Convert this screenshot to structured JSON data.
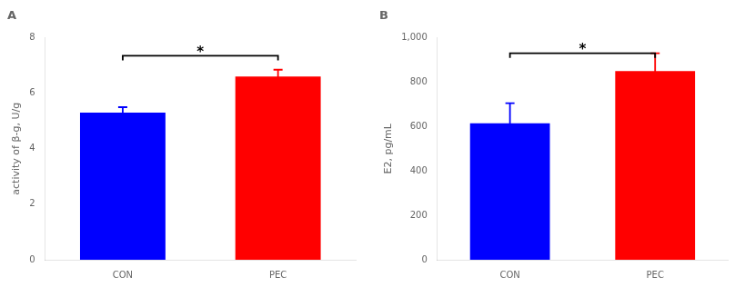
{
  "chart_data": [
    {
      "type": "bar",
      "title": "A",
      "categories": [
        "CON",
        "PEC"
      ],
      "values": [
        5.3,
        6.6
      ],
      "errors": [
        0.2,
        0.25
      ],
      "colors": [
        "#0000FF",
        "#FF0000"
      ],
      "ylabel": "activity of β-g, U/g",
      "ylim": [
        0,
        8
      ],
      "yticks": [
        0,
        2,
        4,
        6,
        8
      ],
      "grid": false,
      "annotations": [
        {
          "text": "*",
          "between": [
            "CON",
            "PEC"
          ],
          "y": 7.35
        }
      ]
    },
    {
      "type": "bar",
      "title": "B",
      "categories": [
        "CON",
        "PEC"
      ],
      "values": [
        615,
        850
      ],
      "errors": [
        90,
        80
      ],
      "colors": [
        "#0000FF",
        "#FF0000"
      ],
      "ylabel": "E2, pg/mL",
      "ylim": [
        0,
        1000
      ],
      "yticks": [
        0,
        200,
        400,
        600,
        800,
        1000
      ],
      "grid": false,
      "annotations": [
        {
          "text": "*",
          "between": [
            "CON",
            "PEC"
          ],
          "y": 930
        }
      ]
    }
  ]
}
